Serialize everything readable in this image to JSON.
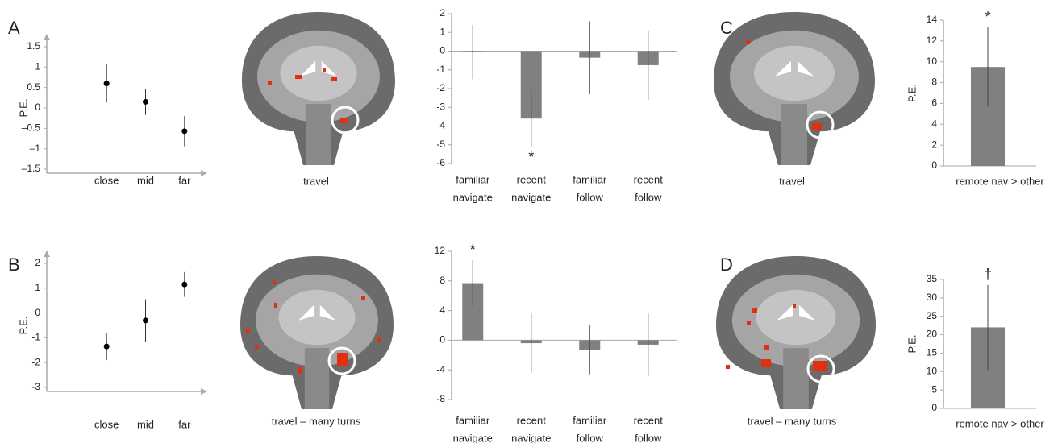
{
  "panel_letters": [
    "A",
    "B",
    "C",
    "D"
  ],
  "image_captions": [
    "travel",
    "travel – many turns",
    "travel",
    "travel – many turns"
  ],
  "chart_data": [
    {
      "type": "errorbar",
      "ylabel": "P.E.",
      "categories": [
        "close",
        "mid",
        "far"
      ],
      "values": [
        0.6,
        0.15,
        -0.57
      ],
      "errors": [
        0.47,
        0.32,
        0.37
      ],
      "color": "#000000",
      "ylim": [
        -1.5,
        1.5
      ],
      "yticks": [
        {
          "value": -1.5,
          "label": "–1.5"
        },
        {
          "value": -1,
          "label": "–1"
        },
        {
          "value": -0.5,
          "label": "–0.5"
        },
        0,
        0.5,
        1,
        1.5
      ]
    },
    {
      "type": "bar",
      "categories": [
        [
          "familiar",
          "navigate"
        ],
        [
          "recent",
          "navigate"
        ],
        [
          "familiar",
          "follow"
        ],
        [
          "recent",
          "follow"
        ]
      ],
      "values": [
        -0.05,
        -3.6,
        -0.35,
        -0.75
      ],
      "errors": [
        1.45,
        1.5,
        1.95,
        1.85
      ],
      "significance": [
        null,
        "*",
        null,
        null
      ],
      "color": "#808080",
      "ylim": [
        -6,
        2
      ],
      "yticks": [
        -6,
        -5,
        -4,
        -3,
        -2,
        -1,
        0,
        1,
        2
      ]
    },
    {
      "type": "bar",
      "ylabel": "P.E.",
      "categories": [
        [
          "remote nav > other"
        ]
      ],
      "values": [
        9.5
      ],
      "errors": [
        3.8
      ],
      "significance": [
        "*"
      ],
      "color": "#808080",
      "ylim": [
        0,
        14
      ],
      "yticks": [
        0,
        2,
        4,
        6,
        8,
        10,
        12,
        14
      ]
    },
    {
      "type": "errorbar",
      "ylabel": "P.E.",
      "categories": [
        "close",
        "mid",
        "far"
      ],
      "values": [
        -1.35,
        -0.3,
        1.15
      ],
      "errors": [
        0.55,
        0.85,
        0.5
      ],
      "color": "#000000",
      "ylim": [
        -3,
        2
      ],
      "yticks": [
        -3,
        -2,
        -1,
        0,
        1,
        2
      ]
    },
    {
      "type": "bar",
      "categories": [
        [
          "familiar",
          "navigate"
        ],
        [
          "recent",
          "navigate"
        ],
        [
          "familiar",
          "follow"
        ],
        [
          "recent",
          "follow"
        ]
      ],
      "values": [
        7.7,
        -0.4,
        -1.3,
        -0.6
      ],
      "errors": [
        3.1,
        4.0,
        3.3,
        4.2
      ],
      "significance": [
        "*",
        null,
        null,
        null
      ],
      "color": "#808080",
      "ylim": [
        -8,
        12
      ],
      "yticks": [
        -8,
        -4,
        0,
        4,
        8,
        12
      ]
    },
    {
      "type": "bar",
      "ylabel": "P.E.",
      "categories": [
        [
          "remote nav > other"
        ]
      ],
      "values": [
        22
      ],
      "errors": [
        11.5
      ],
      "significance": [
        "†"
      ],
      "color": "#808080",
      "ylim": [
        0,
        35
      ],
      "yticks": [
        0,
        5,
        10,
        15,
        20,
        25,
        30,
        35
      ]
    }
  ]
}
